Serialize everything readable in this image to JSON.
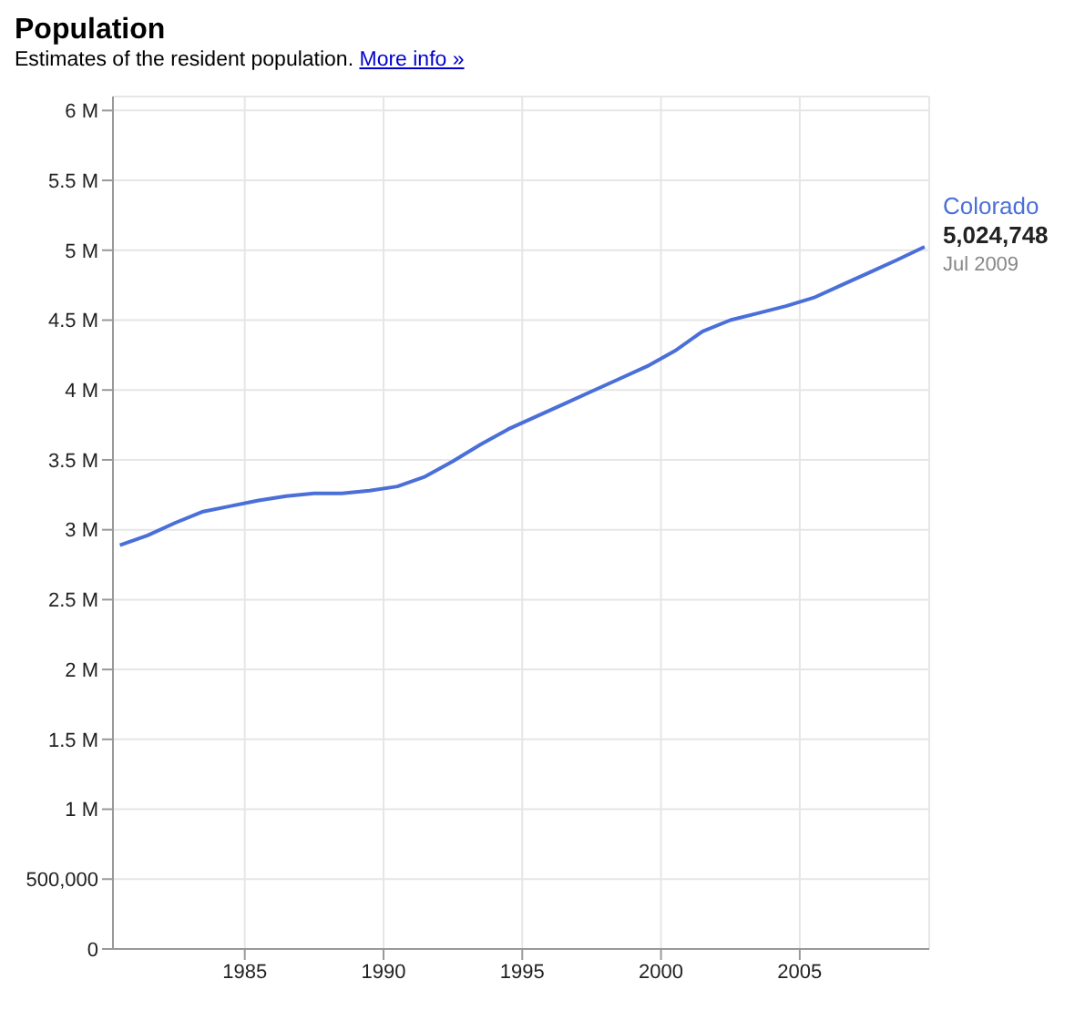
{
  "chart_data": {
    "type": "line",
    "title": "Population",
    "subtitle": "Estimates of the resident population.",
    "annotations": [
      "More info »",
      {
        "text": "Jul 2009",
        "x": "2009-07",
        "y": 5024748
      }
    ],
    "x": [
      "1980-07",
      "1981-07",
      "1982-07",
      "1983-07",
      "1984-07",
      "1985-07",
      "1986-07",
      "1987-07",
      "1988-07",
      "1989-07",
      "1990-07",
      "1991-07",
      "1992-07",
      "1993-07",
      "1994-07",
      "1995-07",
      "1996-07",
      "1997-07",
      "1998-07",
      "1999-07",
      "2000-07",
      "2001-07",
      "2002-07",
      "2003-07",
      "2004-07",
      "2005-07",
      "2006-07",
      "2007-07",
      "2008-07",
      "2009-07"
    ],
    "series": [
      {
        "name": "Colorado",
        "color": "#4a6fd8",
        "values": [
          2890000,
          2960000,
          3050000,
          3130000,
          3170000,
          3210000,
          3240000,
          3260000,
          3260000,
          3280000,
          3310000,
          3380000,
          3490000,
          3610000,
          3720000,
          3810000,
          3900000,
          3990000,
          4080000,
          4170000,
          4280000,
          4420000,
          4500000,
          4550000,
          4600000,
          4660000,
          4750000,
          4840000,
          4930000,
          5024748
        ],
        "value_labels": [
          null,
          null,
          null,
          null,
          null,
          null,
          null,
          null,
          null,
          null,
          null,
          null,
          null,
          null,
          null,
          null,
          null,
          null,
          null,
          null,
          null,
          null,
          null,
          null,
          null,
          null,
          null,
          null,
          null,
          "5,024,748"
        ]
      }
    ],
    "xlim": [
      "1980-04",
      "2009-09"
    ],
    "xticks": [
      "1985",
      "1990",
      "1995",
      "2000",
      "2005"
    ],
    "ylim": [
      0,
      6100000
    ],
    "yticks": [
      {
        "value": 0,
        "label": "0"
      },
      {
        "value": 500000,
        "label": "500,000"
      },
      {
        "value": 1000000,
        "label": "1 M"
      },
      {
        "value": 1500000,
        "label": "1.5 M"
      },
      {
        "value": 2000000,
        "label": "2 M"
      },
      {
        "value": 2500000,
        "label": "2.5 M"
      },
      {
        "value": 3000000,
        "label": "3 M"
      },
      {
        "value": 3500000,
        "label": "3.5 M"
      },
      {
        "value": 4000000,
        "label": "4 M"
      },
      {
        "value": 4500000,
        "label": "4.5 M"
      },
      {
        "value": 5000000,
        "label": "5 M"
      },
      {
        "value": 5500000,
        "label": "5.5 M"
      },
      {
        "value": 6000000,
        "label": "6 M"
      }
    ],
    "grid": true,
    "legend": false,
    "marker": "none",
    "line_style": "solid"
  }
}
